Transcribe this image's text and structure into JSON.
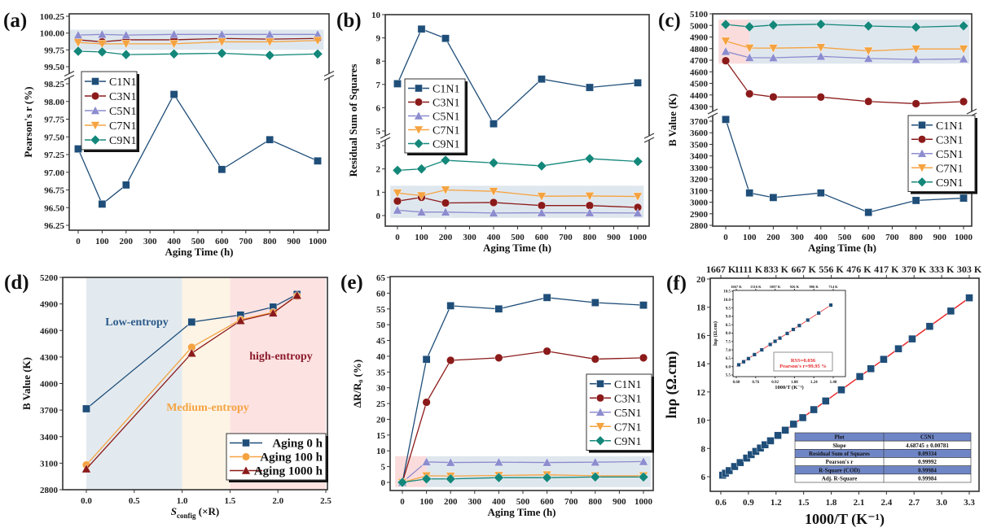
{
  "chart_data": [
    {
      "panel": "(a)",
      "type": "line",
      "xlabel": "Aging Time (h)",
      "ylabel": "Pearson's r (%)",
      "x": [
        0,
        100,
        200,
        400,
        600,
        800,
        1000
      ],
      "xticks": [
        "0",
        "100",
        "200",
        "300",
        "400",
        "500",
        "600",
        "700",
        "800",
        "900",
        "1000"
      ],
      "yticks": [
        "96.25",
        "96.50",
        "96.75",
        "97.00",
        "97.25",
        "97.50",
        "97.75",
        "98.00",
        "98.25",
        "99.50",
        "99.75",
        "100.00",
        "100.25"
      ],
      "y_break": [
        [
          96.25,
          98.25
        ],
        [
          99.5,
          100.25
        ]
      ],
      "legend": "upper-left",
      "shaded_regions": [
        {
          "x": [
            -40,
            1025
          ],
          "y": [
            99.75,
            100.05
          ],
          "color": "#dfe7ee"
        }
      ],
      "series": [
        {
          "name": "C1N1",
          "marker": "square",
          "color": "#1f4e79",
          "values": [
            97.33,
            96.55,
            96.82,
            98.1,
            97.04,
            97.46,
            97.16
          ]
        },
        {
          "name": "C3N1",
          "marker": "circle",
          "color": "#8b1a1a",
          "values": [
            99.9,
            99.87,
            99.9,
            99.9,
            99.92,
            99.91,
            99.92
          ]
        },
        {
          "name": "C5N1",
          "marker": "triangle-up",
          "color": "#8c8ccf",
          "values": [
            99.97,
            99.98,
            99.97,
            99.98,
            99.98,
            99.98,
            99.98
          ]
        },
        {
          "name": "C7N1",
          "marker": "triangle-down",
          "color": "#f5a340",
          "values": [
            99.86,
            99.84,
            99.84,
            99.84,
            99.87,
            99.87,
            99.89
          ]
        },
        {
          "name": "C9N1",
          "marker": "diamond",
          "color": "#13877a",
          "values": [
            99.73,
            99.72,
            99.68,
            99.69,
            99.7,
            99.67,
            99.69
          ]
        }
      ]
    },
    {
      "panel": "(b)",
      "type": "line",
      "xlabel": "Aging Time (h)",
      "ylabel": "Residual Sum of Squares",
      "x": [
        0,
        100,
        200,
        400,
        600,
        800,
        1000
      ],
      "xticks": [
        "0",
        "100",
        "200",
        "300",
        "400",
        "500",
        "600",
        "700",
        "800",
        "900",
        "1000"
      ],
      "yticks": [
        "0",
        "1",
        "2",
        "3",
        "5",
        "6",
        "7",
        "8",
        "9",
        "10"
      ],
      "y_break": [
        [
          0,
          3
        ],
        [
          5,
          10
        ]
      ],
      "legend": "center-left",
      "shaded_regions": [
        {
          "x": [
            -30,
            1025
          ],
          "y": [
            -0.1,
            1.28
          ],
          "color": "#dfe7ee"
        }
      ],
      "series": [
        {
          "name": "C1N1",
          "marker": "square",
          "color": "#1f4e79",
          "values": [
            7.03,
            9.38,
            8.98,
            5.31,
            7.23,
            6.87,
            7.07
          ]
        },
        {
          "name": "C3N1",
          "marker": "circle",
          "color": "#8b1a1a",
          "values": [
            0.62,
            0.78,
            0.54,
            0.56,
            0.43,
            0.43,
            0.35
          ]
        },
        {
          "name": "C5N1",
          "marker": "triangle-up",
          "color": "#8c8ccf",
          "values": [
            0.23,
            0.15,
            0.15,
            0.11,
            0.12,
            0.12,
            0.11
          ]
        },
        {
          "name": "C7N1",
          "marker": "triangle-down",
          "color": "#f5a340",
          "values": [
            0.97,
            0.85,
            1.1,
            1.04,
            0.83,
            0.84,
            0.82
          ]
        },
        {
          "name": "C9N1",
          "marker": "diamond",
          "color": "#13877a",
          "values": [
            1.94,
            2.0,
            2.37,
            2.26,
            2.13,
            2.44,
            2.32
          ]
        }
      ]
    },
    {
      "panel": "(c)",
      "type": "line",
      "xlabel": "Aging Time (h)",
      "ylabel": "B Value (K)",
      "x": [
        0,
        100,
        200,
        400,
        600,
        800,
        1000
      ],
      "xticks": [
        "0",
        "100",
        "200",
        "300",
        "400",
        "500",
        "600",
        "700",
        "800",
        "900",
        "1000"
      ],
      "yticks": [
        "2800",
        "2900",
        "3000",
        "3100",
        "3200",
        "3300",
        "3400",
        "3500",
        "3600",
        "3700",
        "4300",
        "4400",
        "4500",
        "4600",
        "4700",
        "4800",
        "4900",
        "5000",
        "5100"
      ],
      "y_break": [
        [
          2800,
          3700
        ],
        [
          4300,
          5100
        ]
      ],
      "legend": "center-right",
      "shaded_regions": [
        {
          "x": [
            -30,
            100
          ],
          "y": [
            4670,
            5050
          ],
          "color": "#fbdcdc"
        },
        {
          "x": [
            100,
            1025
          ],
          "y": [
            4670,
            5050
          ],
          "color": "#dfe7ee"
        }
      ],
      "series": [
        {
          "name": "C1N1",
          "marker": "square",
          "color": "#1f4e79",
          "values": [
            3715,
            3080,
            3040,
            3080,
            2912,
            3015,
            3035
          ]
        },
        {
          "name": "C3N1",
          "marker": "circle",
          "color": "#8b1a1a",
          "values": [
            4695,
            4410,
            4383,
            4382,
            4344,
            4325,
            4343
          ]
        },
        {
          "name": "C5N1",
          "marker": "triangle-up",
          "color": "#8c8ccf",
          "values": [
            4775,
            4722,
            4721,
            4733,
            4715,
            4706,
            4711
          ]
        },
        {
          "name": "C7N1",
          "marker": "triangle-down",
          "color": "#f5a340",
          "values": [
            4865,
            4805,
            4804,
            4810,
            4780,
            4797,
            4797
          ]
        },
        {
          "name": "C9N1",
          "marker": "diamond",
          "color": "#13877a",
          "values": [
            5008,
            4988,
            5003,
            5010,
            4995,
            4985,
            4996
          ]
        }
      ]
    },
    {
      "panel": "(d)",
      "type": "line",
      "xlabel": "S",
      "xlabel_sub": "config",
      "xlabel_suffix": " (×R)",
      "ylabel": "B Value (K)",
      "x": [
        0,
        1.1,
        1.61,
        1.95,
        2.2
      ],
      "xlim": [
        -0.25,
        2.5
      ],
      "ylim": [
        2800,
        5200
      ],
      "xticks": [
        "0.0",
        "0.5",
        "1.0",
        "1.5",
        "2.0",
        "2.5"
      ],
      "yticks": [
        "2800",
        "3100",
        "3400",
        "3700",
        "4000",
        "4300",
        "4600",
        "4900",
        "5200"
      ],
      "legend": "lower-right",
      "shaded_regions": [
        {
          "x": [
            0,
            1
          ],
          "y": [
            2800,
            5200
          ],
          "color": "#e3eaef"
        },
        {
          "x": [
            1,
            1.5
          ],
          "y": [
            2800,
            5200
          ],
          "color": "#fdf4e6"
        },
        {
          "x": [
            1.5,
            2.5
          ],
          "y": [
            2800,
            5200
          ],
          "color": "#fde2e2"
        }
      ],
      "annotations": [
        {
          "text": "Low-entropy",
          "color": "#2c5a8a"
        },
        {
          "text": "Medium-entropy",
          "color": "#f4a442"
        },
        {
          "text": "high-entropy",
          "color": "#8b1a2a"
        }
      ],
      "series": [
        {
          "name": "Aging 0 h",
          "marker": "square",
          "color": "#1f4e79",
          "values": [
            3715,
            4695,
            4775,
            4865,
            5008
          ]
        },
        {
          "name": "Aging 100 h",
          "marker": "circle",
          "color": "#f5a340",
          "values": [
            3080,
            4410,
            4722,
            4805,
            4988
          ]
        },
        {
          "name": "Aging 1000 h",
          "marker": "triangle-up",
          "color": "#8b1a1a",
          "values": [
            3035,
            4343,
            4711,
            4797,
            4996
          ]
        }
      ]
    },
    {
      "panel": "(e)",
      "type": "line",
      "xlabel": "Aging Time (h)",
      "ylabel": "ΔR/R₀ (%)",
      "x": [
        0,
        100,
        200,
        400,
        600,
        800,
        1000
      ],
      "ylim": [
        -1.5,
        65
      ],
      "xticks": [
        "0",
        "100",
        "200",
        "300",
        "400",
        "500",
        "600",
        "700",
        "800",
        "900",
        "1000"
      ],
      "yticks": [
        "0",
        "5",
        "10",
        "15",
        "20",
        "25",
        "30",
        "35",
        "40",
        "45",
        "50",
        "55",
        "60",
        "65"
      ],
      "legend": "center-right",
      "shaded_regions": [
        {
          "x": [
            -30,
            100
          ],
          "y": [
            -1.5,
            8.3
          ],
          "color": "#fbdcdc"
        },
        {
          "x": [
            100,
            1030
          ],
          "y": [
            -1.5,
            8.3
          ],
          "color": "#dfe7ee"
        }
      ],
      "series": [
        {
          "name": "C1N1",
          "marker": "square",
          "color": "#1f4e79",
          "values": [
            0,
            39.0,
            56.0,
            55.0,
            58.6,
            57.0,
            56.2
          ]
        },
        {
          "name": "C3N1",
          "marker": "circle",
          "color": "#8b1a1a",
          "values": [
            0,
            25.4,
            38.7,
            39.5,
            41.6,
            39.1,
            39.5
          ]
        },
        {
          "name": "C5N1",
          "marker": "triangle-up",
          "color": "#8c8ccf",
          "values": [
            0,
            6.5,
            6.3,
            6.4,
            6.3,
            6.4,
            6.6
          ]
        },
        {
          "name": "C7N1",
          "marker": "triangle-down",
          "color": "#f5a340",
          "values": [
            0,
            2.1,
            2.0,
            2.2,
            2.4,
            2.1,
            2.1
          ]
        },
        {
          "name": "C9N1",
          "marker": "diamond",
          "color": "#13877a",
          "values": [
            0,
            1.1,
            1.1,
            1.5,
            1.5,
            1.7,
            1.7
          ]
        }
      ]
    },
    {
      "panel": "(f)",
      "type": "scatter",
      "xlabel": "1000/T (K⁻¹)",
      "ylabel": "lnρ (Ω.cm)",
      "ylim": [
        5.6,
        20
      ],
      "xticks": [
        "0.6",
        "0.9",
        "1.2",
        "1.5",
        "1.8",
        "2.1",
        "2.4",
        "2.7",
        "3.0",
        "3.3"
      ],
      "top_xticks": [
        "1667 K",
        "1111 K",
        "833 K",
        "667 K",
        "556 K",
        "476 K",
        "417 K",
        "370 K",
        "333 K",
        "303 K"
      ],
      "yticks": [
        "6",
        "8",
        "10",
        "12",
        "14",
        "16",
        "18",
        "20"
      ],
      "fit_line_color": "#e8282b",
      "series": [
        {
          "name": "C5N1",
          "marker": "square",
          "color": "#1f4e79",
          "x": [
            0.62,
            0.65,
            0.69,
            0.75,
            0.81,
            0.88,
            0.93,
            0.98,
            1.03,
            1.08,
            1.14,
            1.22,
            1.3,
            1.39,
            1.49,
            1.61,
            1.74,
            1.91,
            2.11,
            2.23,
            2.37,
            2.53,
            2.68,
            2.87,
            3.1,
            3.3
          ],
          "values": [
            6.11,
            6.25,
            6.43,
            6.72,
            7.0,
            7.32,
            7.56,
            7.79,
            8.03,
            8.26,
            8.54,
            8.92,
            9.29,
            9.72,
            10.18,
            10.75,
            11.36,
            12.15,
            13.09,
            13.65,
            14.31,
            15.06,
            15.76,
            16.65,
            17.73,
            18.67
          ]
        }
      ],
      "table": {
        "rows": [
          [
            "Plot",
            "C5N1"
          ],
          [
            "Slope",
            "4.68745 ± 0.00781"
          ],
          [
            "Residual Sum of Squares",
            "0.09334"
          ],
          [
            "Pearson's r",
            "0.99992"
          ],
          [
            "R-Square (COD)",
            "0.99984"
          ],
          [
            "Adj. R-Square",
            "0.99984"
          ]
        ],
        "header_color": "#6f86c6"
      }
    },
    {
      "panel": "(f) inset",
      "type": "scatter",
      "xlabel": "1000/T (K⁻¹)",
      "ylabel": "lnρ (Ω.cm)",
      "ylim": [
        5.5,
        10.5
      ],
      "xticks": [
        "0.60",
        "0.76",
        "0.92",
        "1.08",
        "1.24",
        "1.40"
      ],
      "top_xticks": [
        "1667 K",
        "1316 K",
        "1087 K",
        "926 K",
        "806 K",
        "714 K"
      ],
      "yticks": [
        "5.5",
        "6.0",
        "6.5",
        "7.0",
        "7.5",
        "8.0",
        "8.5",
        "9.0",
        "9.5",
        "10.0",
        "10.5"
      ],
      "fit_line_color": "#e8282b",
      "annotations": [
        {
          "text": "RSS=0.036",
          "color": "#e8282b"
        },
        {
          "text": "Pearson's r=99.95 %",
          "color": "#e8282b"
        }
      ],
      "series": [
        {
          "name": "C5N1",
          "marker": "square",
          "color": "#1f4e79",
          "x": [
            0.62,
            0.66,
            0.7,
            0.75,
            0.81,
            0.88,
            0.92,
            0.96,
            1.02,
            1.07,
            1.12,
            1.19,
            1.28,
            1.38
          ],
          "values": [
            6.11,
            6.29,
            6.48,
            6.72,
            7.0,
            7.32,
            7.51,
            7.7,
            7.98,
            8.22,
            8.45,
            8.78,
            9.2,
            9.67
          ]
        }
      ]
    }
  ]
}
